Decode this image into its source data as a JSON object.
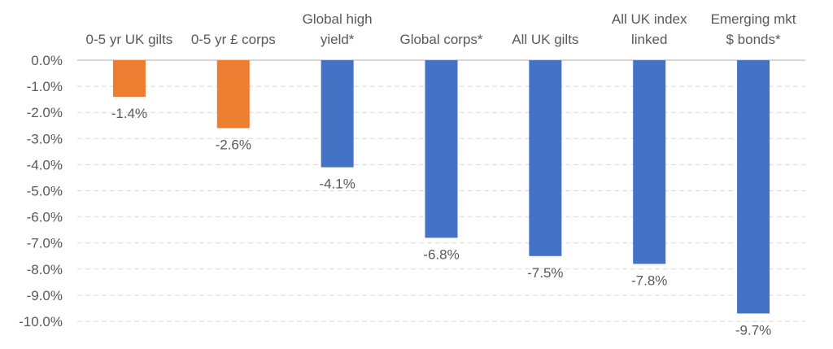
{
  "chart_data": {
    "type": "bar",
    "title": "",
    "xlabel": "",
    "ylabel": "",
    "categories": [
      [
        "0-5 yr UK gilts"
      ],
      [
        "0-5 yr £ corps"
      ],
      [
        "Global high",
        "yield*"
      ],
      [
        "Global corps*"
      ],
      [
        "All UK gilts"
      ],
      [
        "All UK index",
        "linked"
      ],
      [
        "Emerging mkt",
        "$ bonds*"
      ]
    ],
    "values": [
      -1.4,
      -2.6,
      -4.1,
      -6.8,
      -7.5,
      -7.8,
      -9.7
    ],
    "value_labels": [
      "-1.4%",
      "-2.6%",
      "-4.1%",
      "-6.8%",
      "-7.5%",
      "-7.8%",
      "-9.7%"
    ],
    "bar_colors": [
      "#ED7D31",
      "#ED7D31",
      "#4472C4",
      "#4472C4",
      "#4472C4",
      "#4472C4",
      "#4472C4"
    ],
    "ylim": [
      -10,
      0
    ],
    "yticks": [
      0,
      -1,
      -2,
      -3,
      -4,
      -5,
      -6,
      -7,
      -8,
      -9,
      -10
    ],
    "ytick_labels": [
      "0.0%",
      "-1.0%",
      "-2.0%",
      "-3.0%",
      "-4.0%",
      "-5.0%",
      "-6.0%",
      "-7.0%",
      "-8.0%",
      "-9.0%",
      "-10.0%"
    ],
    "grid": true,
    "grid_style": "dashed",
    "grid_color": "#D9D9D9",
    "axis_color": "#BFBFBF",
    "text_color": "#595959",
    "category_labels_position": "top",
    "legend": "none"
  }
}
